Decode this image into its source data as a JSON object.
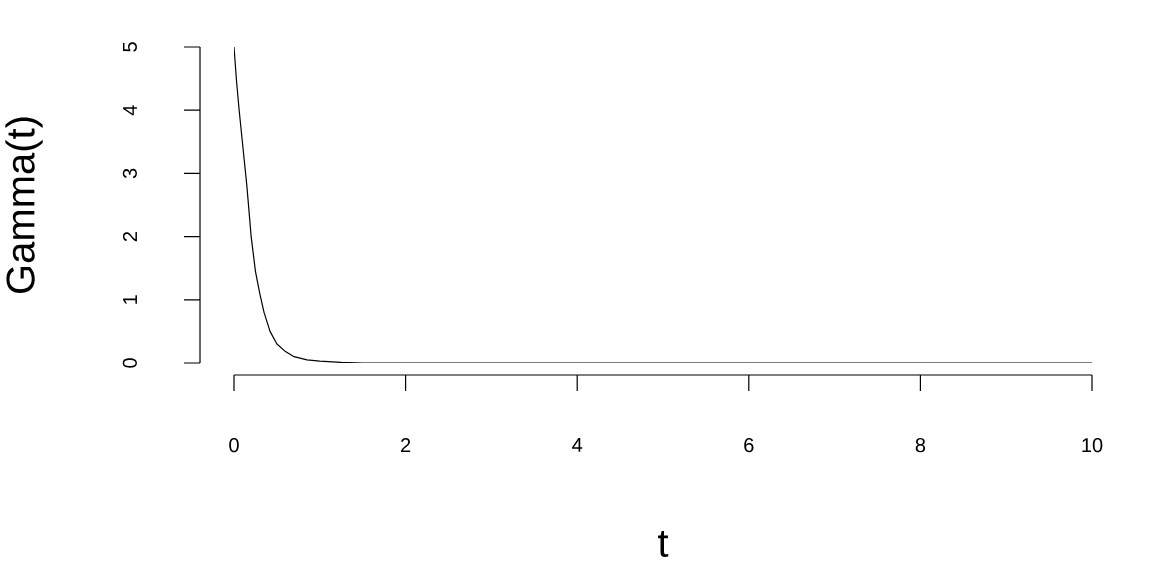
{
  "chart_data": {
    "type": "line",
    "xlabel": "t",
    "ylabel": "Gamma(t)",
    "xlim": [
      0,
      10
    ],
    "ylim": [
      0,
      5
    ],
    "xticks": [
      0,
      2,
      4,
      6,
      8,
      10
    ],
    "yticks": [
      0,
      1,
      2,
      3,
      4,
      5
    ],
    "grid": false,
    "marker": "none",
    "line_style": "solid",
    "series": [
      {
        "color": "#000000",
        "x": [
          0,
          0.03,
          0.06,
          0.09,
          0.12,
          0.15,
          0.2,
          0.25,
          0.3,
          0.35,
          0.42,
          0.5,
          0.6,
          0.7,
          0.85,
          1.0,
          1.25,
          1.5,
          2,
          3,
          4,
          5,
          6,
          7,
          8,
          9,
          10
        ],
        "values": [
          5,
          4.45,
          4.0,
          3.6,
          3.2,
          2.8,
          2.0,
          1.45,
          1.1,
          0.8,
          0.5,
          0.3,
          0.18,
          0.1,
          0.05,
          0.03,
          0.01,
          0,
          0,
          0,
          0,
          0,
          0,
          0,
          0,
          0,
          0
        ]
      }
    ]
  }
}
